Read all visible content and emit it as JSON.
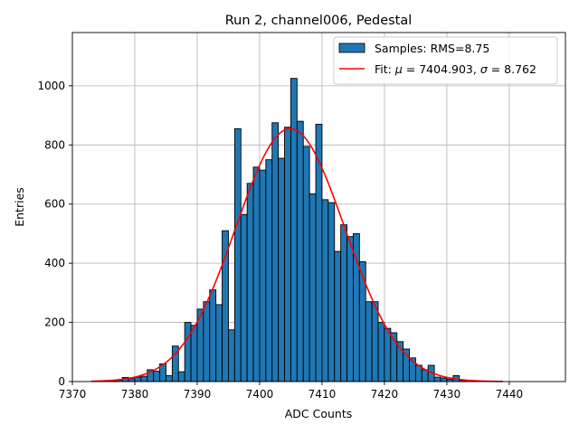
{
  "chart_data": {
    "type": "bar",
    "title": "Run 2, channel006, Pedestal",
    "xlabel": "ADC Counts",
    "ylabel": "Entries",
    "xlim": [
      7370,
      7449
    ],
    "ylim": [
      0,
      1180
    ],
    "xticks": [
      7370,
      7380,
      7390,
      7400,
      7410,
      7420,
      7430,
      7440
    ],
    "yticks": [
      0,
      200,
      400,
      600,
      800,
      1000
    ],
    "grid": true,
    "legend_position": "top-right",
    "bin_width": 1,
    "bins": [
      {
        "x": 7374,
        "y": 1
      },
      {
        "x": 7375,
        "y": 2
      },
      {
        "x": 7376,
        "y": 3
      },
      {
        "x": 7377,
        "y": 5
      },
      {
        "x": 7378,
        "y": 14
      },
      {
        "x": 7379,
        "y": 10
      },
      {
        "x": 7380,
        "y": 15
      },
      {
        "x": 7381,
        "y": 18
      },
      {
        "x": 7382,
        "y": 40
      },
      {
        "x": 7383,
        "y": 35
      },
      {
        "x": 7384,
        "y": 60
      },
      {
        "x": 7385,
        "y": 20
      },
      {
        "x": 7386,
        "y": 120
      },
      {
        "x": 7387,
        "y": 33
      },
      {
        "x": 7388,
        "y": 200
      },
      {
        "x": 7389,
        "y": 190
      },
      {
        "x": 7390,
        "y": 245
      },
      {
        "x": 7391,
        "y": 270
      },
      {
        "x": 7392,
        "y": 310
      },
      {
        "x": 7393,
        "y": 260
      },
      {
        "x": 7394,
        "y": 510
      },
      {
        "x": 7395,
        "y": 175
      },
      {
        "x": 7396,
        "y": 855
      },
      {
        "x": 7397,
        "y": 565
      },
      {
        "x": 7398,
        "y": 670
      },
      {
        "x": 7399,
        "y": 725
      },
      {
        "x": 7400,
        "y": 715
      },
      {
        "x": 7401,
        "y": 750
      },
      {
        "x": 7402,
        "y": 875
      },
      {
        "x": 7403,
        "y": 755
      },
      {
        "x": 7404,
        "y": 860
      },
      {
        "x": 7405,
        "y": 1025
      },
      {
        "x": 7406,
        "y": 880
      },
      {
        "x": 7407,
        "y": 795
      },
      {
        "x": 7408,
        "y": 635
      },
      {
        "x": 7409,
        "y": 870
      },
      {
        "x": 7410,
        "y": 615
      },
      {
        "x": 7411,
        "y": 605
      },
      {
        "x": 7412,
        "y": 440
      },
      {
        "x": 7413,
        "y": 530
      },
      {
        "x": 7414,
        "y": 490
      },
      {
        "x": 7415,
        "y": 500
      },
      {
        "x": 7416,
        "y": 405
      },
      {
        "x": 7417,
        "y": 270
      },
      {
        "x": 7418,
        "y": 270
      },
      {
        "x": 7419,
        "y": 200
      },
      {
        "x": 7420,
        "y": 180
      },
      {
        "x": 7421,
        "y": 165
      },
      {
        "x": 7422,
        "y": 135
      },
      {
        "x": 7423,
        "y": 110
      },
      {
        "x": 7424,
        "y": 80
      },
      {
        "x": 7425,
        "y": 55
      },
      {
        "x": 7426,
        "y": 40
      },
      {
        "x": 7427,
        "y": 55
      },
      {
        "x": 7428,
        "y": 15
      },
      {
        "x": 7429,
        "y": 12
      },
      {
        "x": 7430,
        "y": 8
      },
      {
        "x": 7431,
        "y": 20
      },
      {
        "x": 7432,
        "y": 4
      },
      {
        "x": 7433,
        "y": 3
      },
      {
        "x": 7434,
        "y": 2
      },
      {
        "x": 7435,
        "y": 1
      },
      {
        "x": 7436,
        "y": 1
      }
    ],
    "series": [
      {
        "name": "Samples: RMS=8.75",
        "kind": "histogram",
        "color": "#1f77b4",
        "edgecolor": "#000000"
      },
      {
        "name": "Fit: μ = 7404.903, σ = 8.762",
        "kind": "gaussian_fit",
        "color": "#ff0000",
        "mu": 7404.903,
        "sigma": 8.762,
        "amplitude": 855,
        "x_range": [
          7373,
          7439
        ]
      }
    ]
  }
}
